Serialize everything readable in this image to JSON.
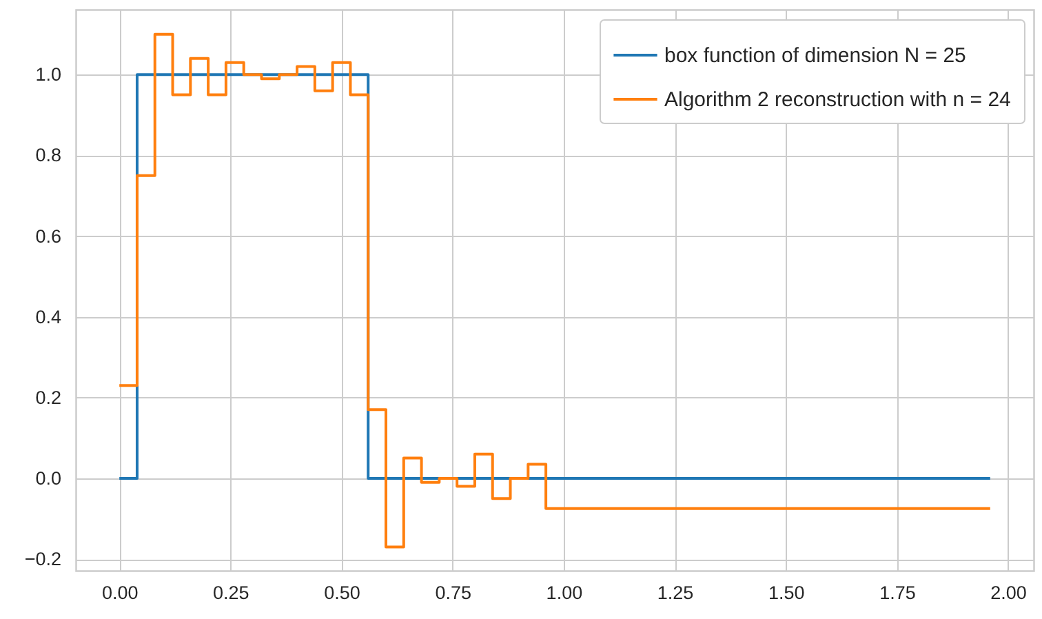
{
  "chart_data": {
    "type": "step",
    "x": [
      0,
      0.04,
      0.08,
      0.12,
      0.16,
      0.2,
      0.24,
      0.28,
      0.32,
      0.36,
      0.4,
      0.44,
      0.48,
      0.52,
      0.56,
      0.6,
      0.64,
      0.68,
      0.72,
      0.76,
      0.8,
      0.84,
      0.88,
      0.92,
      0.96,
      1,
      1.04,
      1.08,
      1.12,
      1.16,
      1.2,
      1.24,
      1.28,
      1.32,
      1.36,
      1.4,
      1.44,
      1.48,
      1.52,
      1.56,
      1.6,
      1.64,
      1.68,
      1.72,
      1.76,
      1.8,
      1.84,
      1.88,
      1.92,
      1.96
    ],
    "series": [
      {
        "name": "box function of dimension N = 25",
        "color": "#1f77b4",
        "values": [
          0,
          1,
          1,
          1,
          1,
          1,
          1,
          1,
          1,
          1,
          1,
          1,
          1,
          1,
          0,
          0,
          0,
          0,
          0,
          0,
          0,
          0,
          0,
          0,
          0,
          0,
          0,
          0,
          0,
          0,
          0,
          0,
          0,
          0,
          0,
          0,
          0,
          0,
          0,
          0,
          0,
          0,
          0,
          0,
          0,
          0,
          0,
          0,
          0,
          0
        ]
      },
      {
        "name": "Algorithm 2 reconstruction with n = 24",
        "color": "#ff7f0e",
        "values": [
          0.23,
          0.75,
          1.1,
          0.95,
          1.04,
          0.95,
          1.03,
          1.0,
          0.99,
          1.0,
          1.02,
          0.96,
          1.03,
          0.95,
          0.17,
          -0.17,
          0.05,
          -0.01,
          0.0,
          -0.02,
          0.06,
          -0.05,
          0.0,
          0.035,
          -0.075,
          -0.075,
          -0.075,
          -0.075,
          -0.075,
          -0.075,
          -0.075,
          -0.075,
          -0.075,
          -0.075,
          -0.075,
          -0.075,
          -0.075,
          -0.075,
          -0.075,
          -0.075,
          -0.075,
          -0.075,
          -0.075,
          -0.075,
          -0.075,
          -0.075,
          -0.075,
          -0.075,
          -0.075,
          -0.075
        ]
      }
    ],
    "xlim": [
      -0.098,
      2.058
    ],
    "xticks": [
      {
        "value": 0,
        "label": "0.00"
      },
      {
        "value": 0.25,
        "label": "0.25"
      },
      {
        "value": 0.5,
        "label": "0.50"
      },
      {
        "value": 0.75,
        "label": "0.75"
      },
      {
        "value": 1,
        "label": "1.00"
      },
      {
        "value": 1.25,
        "label": "1.25"
      },
      {
        "value": 1.5,
        "label": "1.50"
      },
      {
        "value": 1.75,
        "label": "1.75"
      },
      {
        "value": 2,
        "label": "2.00"
      }
    ],
    "ylim": [
      -0.229,
      1.161
    ],
    "yticks": [
      {
        "value": -0.2,
        "label": "−0.2"
      },
      {
        "value": 0,
        "label": "0.0"
      },
      0.2,
      0.4,
      0.6,
      0.8,
      {
        "value": 1,
        "label": "1.0"
      }
    ],
    "grid": true,
    "legend": "top right"
  }
}
